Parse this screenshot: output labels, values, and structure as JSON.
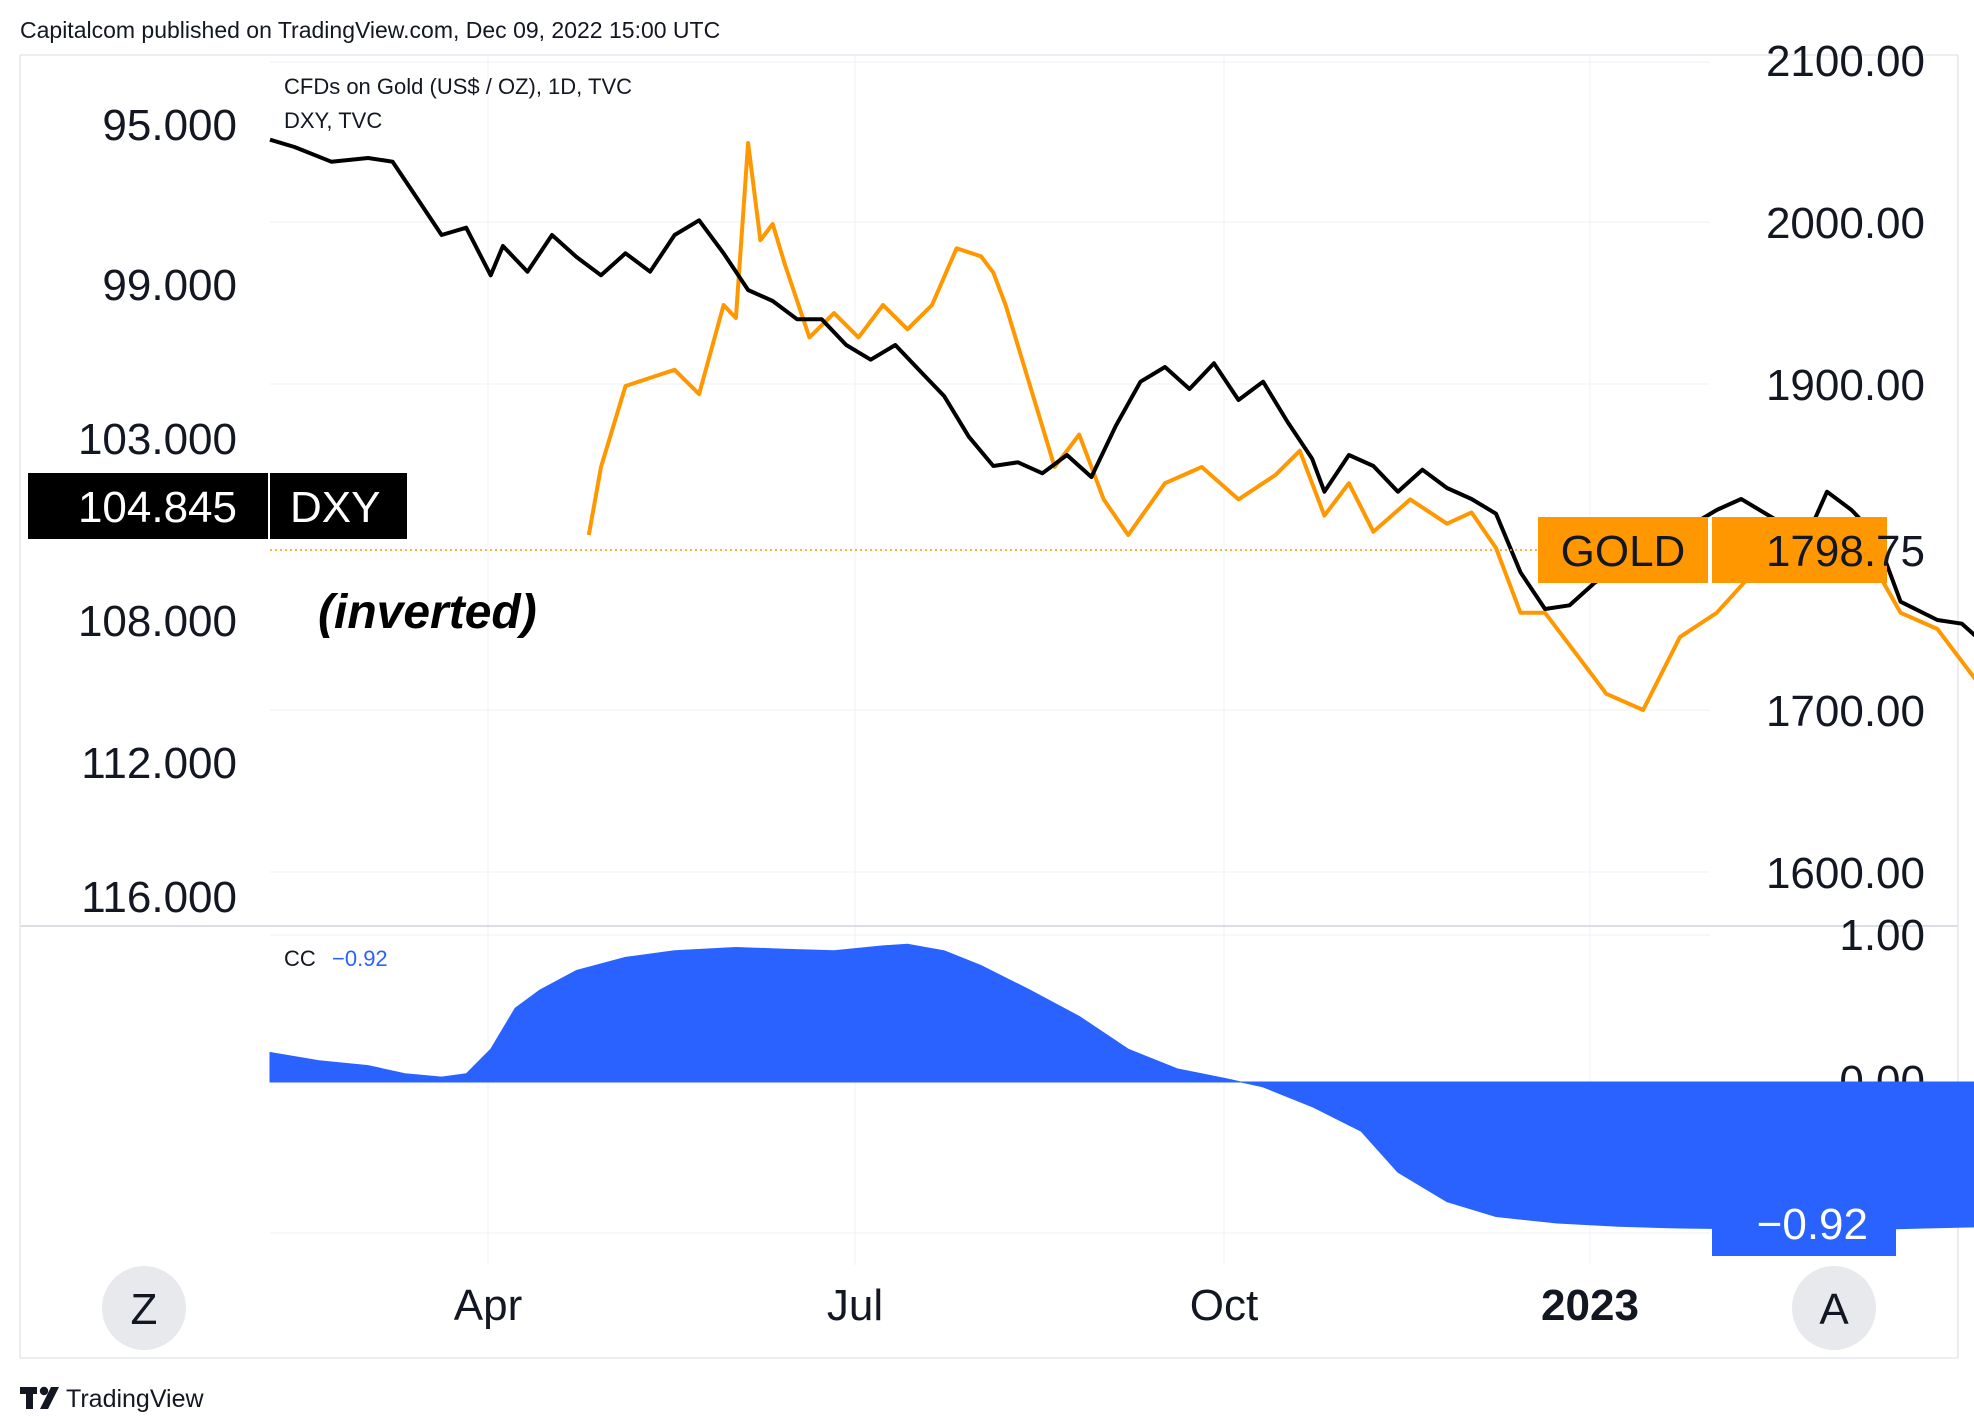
{
  "header": {
    "publisher_line": "Capitalcom published on TradingView.com, Dec 09, 2022 15:00 UTC"
  },
  "footer": {
    "brand": "TradingView"
  },
  "legend": {
    "line1": "CFDs on Gold (US$ / OZ), 1D, TVC",
    "line2": "DXY, TVC"
  },
  "annotation": "(inverted)",
  "left_axis_ticks": [
    "95.000",
    "99.000",
    "103.000",
    "108.000",
    "112.000",
    "116.000"
  ],
  "right_axis_ticks": [
    "2100.00",
    "2000.00",
    "1900.00",
    "1700.00",
    "1600.00"
  ],
  "cc_axis_ticks": [
    "1.00",
    "0.00"
  ],
  "x_axis_ticks": [
    "Apr",
    "Jul",
    "Oct",
    "2023"
  ],
  "dxy_badge": {
    "value": "104.845",
    "label": "DXY"
  },
  "gold_badge": {
    "label": "GOLD",
    "value": "1798.75"
  },
  "cc_legend": {
    "name": "CC",
    "value": "−0.92"
  },
  "cc_badge": "−0.92",
  "buttons": {
    "left": "Z",
    "right": "A"
  },
  "colors": {
    "gold": "#FF9800",
    "dxy": "#000000",
    "cc": "#2962FF",
    "grid": "#F0F3FA",
    "text": "#131722"
  },
  "chart_data": [
    {
      "type": "line",
      "title": "CFDs on Gold (US$ / OZ), 1D, TVC",
      "x_unit": "month index (Jan 2022 = 1)",
      "right_axis": {
        "label": "CFDs on Gold (US$ / OZ)",
        "ticks": [
          1600,
          1700,
          1800,
          1900,
          2000,
          2100
        ]
      },
      "left_axis": {
        "label": "DXY",
        "inverted": true,
        "ticks": [
          95,
          99,
          103,
          108,
          112,
          116
        ]
      },
      "series": [
        {
          "name": "GOLD",
          "axis": "right",
          "color": "#FF9800",
          "last_value": 1798.75,
          "points": [
            [
              2.6,
              1808
            ],
            [
              2.7,
              1850
            ],
            [
              2.9,
              1900
            ],
            [
              3.1,
              1905
            ],
            [
              3.3,
              1910
            ],
            [
              3.5,
              1895
            ],
            [
              3.7,
              1950
            ],
            [
              3.8,
              1942
            ],
            [
              3.9,
              2050
            ],
            [
              4.0,
              1990
            ],
            [
              4.1,
              2000
            ],
            [
              4.2,
              1975
            ],
            [
              4.4,
              1930
            ],
            [
              4.6,
              1945
            ],
            [
              4.8,
              1930
            ],
            [
              5.0,
              1950
            ],
            [
              5.2,
              1935
            ],
            [
              5.4,
              1950
            ],
            [
              5.6,
              1985
            ],
            [
              5.8,
              1980
            ],
            [
              5.9,
              1970
            ],
            [
              6.0,
              1950
            ],
            [
              6.2,
              1900
            ],
            [
              6.4,
              1850
            ],
            [
              6.6,
              1870
            ],
            [
              6.8,
              1830
            ],
            [
              7.0,
              1808
            ],
            [
              7.3,
              1840
            ],
            [
              7.6,
              1850
            ],
            [
              7.9,
              1830
            ],
            [
              8.2,
              1845
            ],
            [
              8.4,
              1860
            ],
            [
              8.6,
              1820
            ],
            [
              8.8,
              1840
            ],
            [
              9.0,
              1810
            ],
            [
              9.3,
              1830
            ],
            [
              9.6,
              1815
            ],
            [
              9.8,
              1822
            ],
            [
              10.0,
              1800
            ],
            [
              10.2,
              1760
            ],
            [
              10.4,
              1760
            ],
            [
              10.6,
              1740
            ],
            [
              10.9,
              1710
            ],
            [
              11.2,
              1700
            ],
            [
              11.5,
              1745
            ],
            [
              11.8,
              1760
            ],
            [
              12.1,
              1785
            ],
            [
              12.4,
              1795
            ],
            [
              12.7,
              1790
            ],
            [
              13.0,
              1800
            ],
            [
              13.3,
              1760
            ],
            [
              13.6,
              1750
            ],
            [
              13.9,
              1720
            ],
            [
              14.1,
              1705
            ],
            [
              14.3,
              1710
            ],
            [
              14.5,
              1715
            ],
            [
              14.7,
              1680
            ],
            [
              14.9,
              1670
            ],
            [
              15.1,
              1660
            ],
            [
              15.3,
              1625
            ],
            [
              15.5,
              1650
            ],
            [
              15.7,
              1690
            ],
            [
              15.9,
              1720
            ],
            [
              16.1,
              1700
            ],
            [
              16.3,
              1660
            ],
            [
              16.5,
              1640
            ],
            [
              16.7,
              1645
            ],
            [
              16.9,
              1630
            ],
            [
              17.1,
              1628
            ],
            [
              17.3,
              1640
            ],
            [
              17.5,
              1650
            ],
            [
              17.7,
              1655
            ],
            [
              17.9,
              1640
            ],
            [
              18.1,
              1632
            ],
            [
              18.3,
              1700
            ],
            [
              18.6,
              1745
            ],
            [
              18.9,
              1760
            ],
            [
              19.2,
              1740
            ],
            [
              19.5,
              1750
            ],
            [
              19.7,
              1765
            ],
            [
              19.9,
              1770
            ],
            [
              20.1,
              1800
            ],
            [
              20.3,
              1775
            ],
            [
              20.5,
              1780
            ],
            [
              20.7,
              1788
            ],
            [
              20.9,
              1800
            ]
          ]
        },
        {
          "name": "DXY",
          "axis": "left",
          "color": "#000000",
          "last_value": 104.845,
          "points": [
            [
              0.0,
              95.4
            ],
            [
              0.2,
              95.6
            ],
            [
              0.5,
              96.0
            ],
            [
              0.8,
              95.9
            ],
            [
              1.0,
              96.0
            ],
            [
              1.2,
              97.0
            ],
            [
              1.4,
              98.0
            ],
            [
              1.6,
              97.8
            ],
            [
              1.8,
              99.1
            ],
            [
              1.9,
              98.3
            ],
            [
              2.1,
              99.0
            ],
            [
              2.3,
              98.0
            ],
            [
              2.5,
              98.6
            ],
            [
              2.7,
              99.1
            ],
            [
              2.9,
              98.5
            ],
            [
              3.1,
              99.0
            ],
            [
              3.3,
              98.0
            ],
            [
              3.5,
              97.6
            ],
            [
              3.7,
              98.5
            ],
            [
              3.9,
              99.5
            ],
            [
              4.1,
              99.8
            ],
            [
              4.3,
              100.3
            ],
            [
              4.5,
              100.3
            ],
            [
              4.7,
              101.0
            ],
            [
              4.9,
              101.4
            ],
            [
              5.1,
              101.0
            ],
            [
              5.3,
              101.7
            ],
            [
              5.5,
              102.4
            ],
            [
              5.7,
              103.5
            ],
            [
              5.9,
              104.3
            ],
            [
              6.1,
              104.2
            ],
            [
              6.3,
              104.5
            ],
            [
              6.5,
              104.0
            ],
            [
              6.7,
              104.6
            ],
            [
              6.9,
              103.2
            ],
            [
              7.1,
              102.0
            ],
            [
              7.3,
              101.6
            ],
            [
              7.5,
              102.2
            ],
            [
              7.7,
              101.5
            ],
            [
              7.9,
              102.5
            ],
            [
              8.1,
              102.0
            ],
            [
              8.3,
              103.1
            ],
            [
              8.5,
              104.1
            ],
            [
              8.6,
              105.0
            ],
            [
              8.8,
              104.0
            ],
            [
              9.0,
              104.3
            ],
            [
              9.2,
              105.0
            ],
            [
              9.4,
              104.4
            ],
            [
              9.6,
              104.9
            ],
            [
              9.8,
              105.2
            ],
            [
              10.0,
              105.6
            ],
            [
              10.2,
              107.2
            ],
            [
              10.4,
              108.2
            ],
            [
              10.6,
              108.1
            ],
            [
              10.8,
              107.5
            ],
            [
              11.0,
              107.0
            ],
            [
              11.2,
              106.4
            ],
            [
              11.5,
              106.1
            ],
            [
              11.8,
              105.5
            ],
            [
              12.0,
              105.2
            ],
            [
              12.3,
              105.8
            ],
            [
              12.5,
              106.5
            ],
            [
              12.7,
              105.0
            ],
            [
              12.9,
              105.5
            ],
            [
              13.1,
              106.2
            ],
            [
              13.3,
              108.0
            ],
            [
              13.6,
              108.5
            ],
            [
              13.8,
              108.6
            ],
            [
              14.1,
              109.5
            ],
            [
              14.4,
              110.0
            ],
            [
              14.6,
              110.2
            ],
            [
              14.8,
              109.0
            ],
            [
              15.0,
              110.3
            ],
            [
              15.2,
              110.5
            ],
            [
              15.4,
              111.6
            ],
            [
              15.6,
              113.5
            ],
            [
              15.8,
              114.1
            ],
            [
              16.0,
              112.3
            ],
            [
              16.2,
              112.8
            ],
            [
              16.4,
              111.1
            ],
            [
              16.6,
              111.2
            ],
            [
              16.8,
              112.0
            ],
            [
              17.0,
              112.8
            ],
            [
              17.2,
              113.2
            ],
            [
              17.4,
              112.0
            ],
            [
              17.6,
              111.8
            ],
            [
              17.8,
              112.8
            ],
            [
              18.0,
              113.0
            ],
            [
              18.2,
              111.0
            ],
            [
              18.4,
              109.7
            ],
            [
              18.6,
              110.9
            ],
            [
              18.8,
              111.4
            ],
            [
              19.0,
              112.4
            ],
            [
              19.2,
              109.8
            ],
            [
              19.4,
              108.0
            ],
            [
              19.6,
              106.6
            ],
            [
              19.8,
              106.0
            ],
            [
              20.0,
              106.4
            ],
            [
              20.2,
              105.4
            ],
            [
              20.4,
              104.3
            ],
            [
              20.6,
              104.5
            ],
            [
              20.8,
              105.6
            ],
            [
              21.0,
              104.2
            ],
            [
              21.2,
              104.6
            ],
            [
              21.4,
              104.2
            ],
            [
              21.6,
              104.5
            ],
            [
              21.8,
              104.8
            ]
          ]
        }
      ]
    },
    {
      "type": "area",
      "title": "CC",
      "y_axis": {
        "ticks": [
          1.0,
          0.0
        ],
        "min": -0.95,
        "max": 1.0
      },
      "series": [
        {
          "name": "CC",
          "color": "#2962FF",
          "last_value": -0.92,
          "points": [
            [
              0.0,
              0.18
            ],
            [
              0.4,
              0.13
            ],
            [
              0.8,
              0.1
            ],
            [
              1.1,
              0.05
            ],
            [
              1.4,
              0.03
            ],
            [
              1.6,
              0.05
            ],
            [
              1.8,
              0.2
            ],
            [
              2.0,
              0.45
            ],
            [
              2.2,
              0.56
            ],
            [
              2.5,
              0.68
            ],
            [
              2.9,
              0.76
            ],
            [
              3.3,
              0.8
            ],
            [
              3.8,
              0.82
            ],
            [
              4.2,
              0.81
            ],
            [
              4.6,
              0.8
            ],
            [
              5.0,
              0.83
            ],
            [
              5.2,
              0.84
            ],
            [
              5.5,
              0.8
            ],
            [
              5.8,
              0.71
            ],
            [
              6.2,
              0.56
            ],
            [
              6.6,
              0.4
            ],
            [
              7.0,
              0.2
            ],
            [
              7.4,
              0.08
            ],
            [
              7.8,
              0.02
            ],
            [
              8.1,
              -0.03
            ],
            [
              8.5,
              -0.15
            ],
            [
              8.9,
              -0.3
            ],
            [
              9.2,
              -0.55
            ],
            [
              9.6,
              -0.73
            ],
            [
              10.0,
              -0.82
            ],
            [
              10.5,
              -0.86
            ],
            [
              11.0,
              -0.88
            ],
            [
              11.5,
              -0.89
            ],
            [
              12.0,
              -0.895
            ],
            [
              12.5,
              -0.9
            ],
            [
              13.0,
              -0.9
            ],
            [
              13.5,
              -0.89
            ],
            [
              14.1,
              -0.88
            ],
            [
              14.6,
              -0.89
            ],
            [
              15.0,
              -0.89
            ],
            [
              15.5,
              -0.9
            ],
            [
              16.0,
              -0.9
            ],
            [
              16.5,
              -0.89
            ],
            [
              17.0,
              -0.89
            ],
            [
              17.5,
              -0.89
            ],
            [
              18.0,
              -0.88
            ],
            [
              18.5,
              -0.88
            ],
            [
              19.0,
              -0.88
            ],
            [
              19.5,
              -0.9
            ],
            [
              20.0,
              -0.91
            ],
            [
              20.4,
              -0.92
            ],
            [
              20.7,
              -0.92
            ]
          ]
        }
      ]
    }
  ]
}
